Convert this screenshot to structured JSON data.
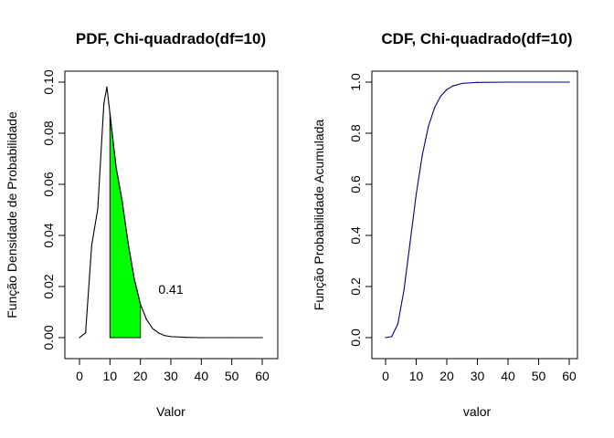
{
  "chart_data": [
    {
      "type": "area",
      "title": "PDF, Chi-quadrado(df=10)",
      "xlabel": "Valor",
      "ylabel": "Função Densidade de Probabilidade",
      "xlim": [
        0,
        60
      ],
      "ylim": [
        0,
        0.1
      ],
      "xticks": [
        "0",
        "10",
        "20",
        "30",
        "40",
        "50",
        "60"
      ],
      "yticks": [
        "0.00",
        "0.02",
        "0.04",
        "0.06",
        "0.08",
        "0.10"
      ],
      "grid": false,
      "series": [
        {
          "line_color": "#000000",
          "x": [
            0,
            2,
            4,
            6,
            8,
            9,
            10,
            12,
            14,
            16,
            18,
            20,
            22,
            24,
            26,
            28,
            30,
            35,
            40,
            50,
            60
          ],
          "y": [
            0.0,
            0.0019,
            0.0361,
            0.0504,
            0.0916,
            0.0981,
            0.0877,
            0.0669,
            0.0535,
            0.0367,
            0.0229,
            0.0131,
            0.0071,
            0.0036,
            0.0018,
            0.0008,
            0.0004,
            0.0001,
            0.0,
            0.0,
            0.0
          ]
        }
      ],
      "shaded_region": {
        "from": 10,
        "to": 20,
        "color": "#00ff00",
        "label": "0.41",
        "label_x": 30,
        "label_y": 0.019
      }
    },
    {
      "type": "line",
      "title": "CDF, Chi-quadrado(df=10)",
      "xlabel": "valor",
      "ylabel": "Função Probabilidade Acumulada",
      "xlim": [
        0,
        60
      ],
      "ylim": [
        0,
        1
      ],
      "xticks": [
        "0",
        "10",
        "20",
        "30",
        "40",
        "50",
        "60"
      ],
      "yticks": [
        "0.0",
        "0.2",
        "0.4",
        "0.6",
        "0.8",
        "1.0"
      ],
      "grid": false,
      "series": [
        {
          "line_color": "#00008b",
          "x": [
            0,
            2,
            4,
            6,
            8,
            10,
            12,
            14,
            16,
            18,
            20,
            22,
            25,
            30,
            40,
            50,
            60
          ],
          "y": [
            0.0,
            0.004,
            0.053,
            0.185,
            0.371,
            0.56,
            0.715,
            0.827,
            0.9,
            0.945,
            0.971,
            0.985,
            0.995,
            0.999,
            1.0,
            1.0,
            1.0
          ]
        }
      ]
    }
  ]
}
